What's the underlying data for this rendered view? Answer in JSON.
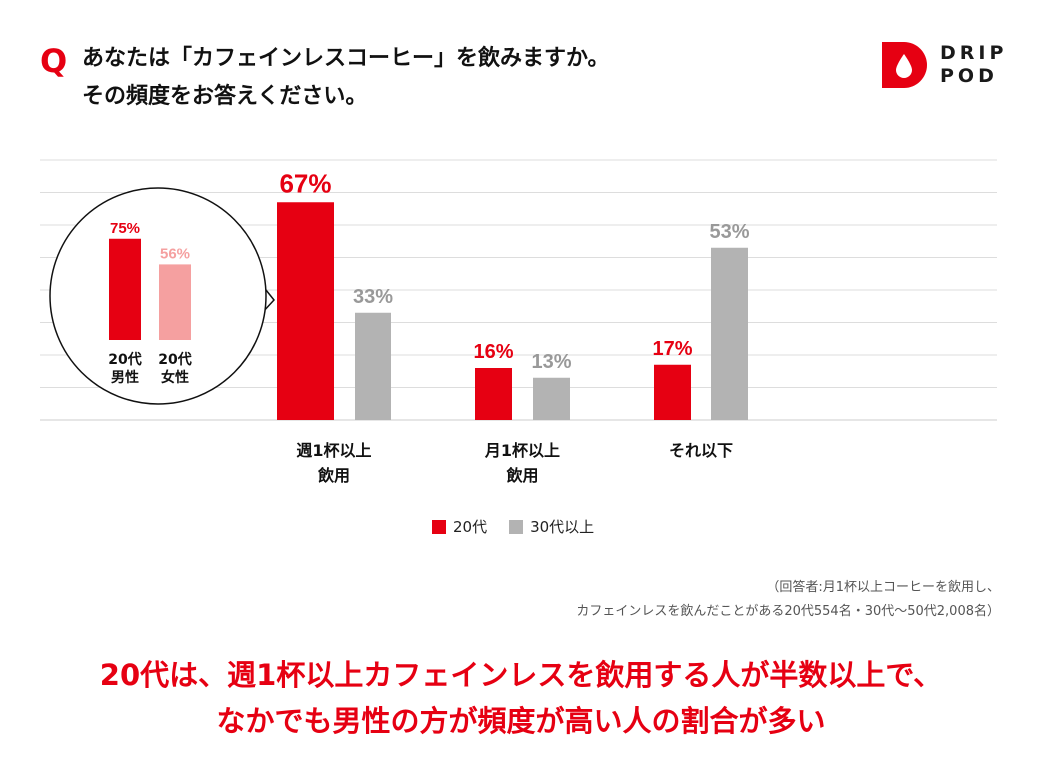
{
  "question": {
    "mark": "Q",
    "line1": "あなたは「カフェインレスコーヒー」を飲みますか。",
    "line2": "その頻度をお答えください。"
  },
  "brand": {
    "line1": "DRIP",
    "line2": "POD",
    "color": "#e60012"
  },
  "colors": {
    "red": "#e60012",
    "gray": "#b3b3b3",
    "pink": "#f5a0a0",
    "grid": "#dddddd"
  },
  "chart_data": {
    "type": "bar",
    "categories": [
      "週1杯以上\n飲用",
      "月1杯以上\n飲用",
      "それ以下"
    ],
    "series": [
      {
        "name": "20代",
        "values": [
          67,
          16,
          17
        ],
        "labels": [
          "67%",
          "16%",
          "17%"
        ],
        "color": "#e60012"
      },
      {
        "name": "30代以上",
        "values": [
          33,
          13,
          53
        ],
        "labels": [
          "33%",
          "13%",
          "53%"
        ],
        "color": "#b3b3b3"
      }
    ],
    "ylim": [
      0,
      80
    ],
    "grid": true,
    "legend_position": "bottom",
    "inset": {
      "type": "bar",
      "categories": [
        "20代\n男性",
        "20代\n女性"
      ],
      "values": [
        75,
        56
      ],
      "labels": [
        "75%",
        "56%"
      ],
      "colors": [
        "#e60012",
        "#f5a0a0"
      ]
    }
  },
  "legend": [
    {
      "label": "20代",
      "color": "#e60012"
    },
    {
      "label": "30代以上",
      "color": "#b3b3b3"
    }
  ],
  "note": {
    "line1": "（回答者:月1杯以上コーヒーを飲用し、",
    "line2": "カフェインレスを飲んだことがある20代554名・30代〜50代2,008名）"
  },
  "conclusion": {
    "line1": "20代は、週1杯以上カフェインレスを飲用する人が半数以上で、",
    "line2": "なかでも男性の方が頻度が高い人の割合が多い"
  }
}
